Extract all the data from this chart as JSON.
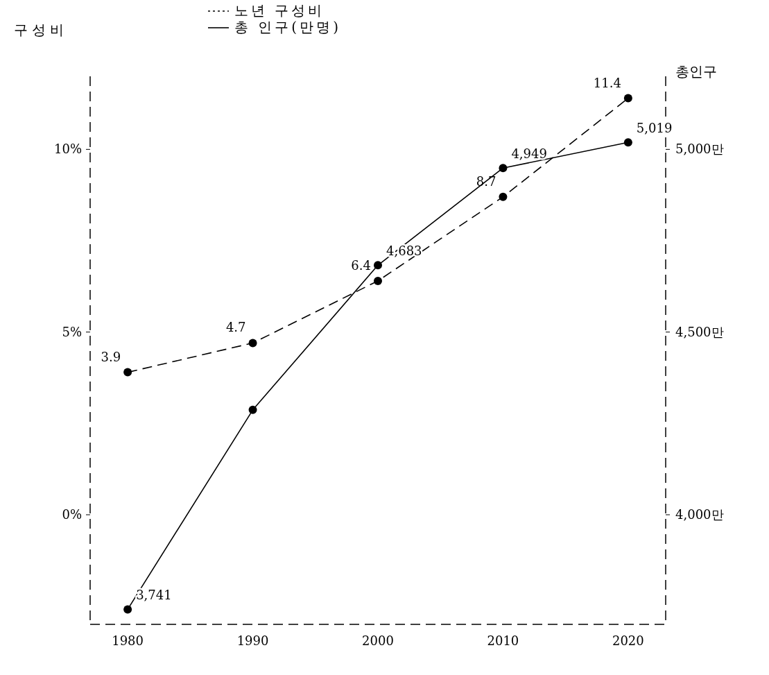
{
  "chart_data": {
    "type": "line",
    "x": [
      1980,
      1990,
      2000,
      2010,
      2020
    ],
    "xlim": [
      1977,
      2023
    ],
    "xticks": [
      1980,
      1990,
      2000,
      2010,
      2020
    ],
    "ylabel": "구성비",
    "y2label": "총인구",
    "ylim": [
      -3,
      12
    ],
    "yticks": [
      {
        "value": 0,
        "label": "0%"
      },
      {
        "value": 5,
        "label": "5%"
      },
      {
        "value": 10,
        "label": "10%"
      }
    ],
    "y2lim": [
      3700,
      5200
    ],
    "y2ticks": [
      {
        "value": 4000,
        "label": "4,000만"
      },
      {
        "value": 4500,
        "label": "4,500만"
      },
      {
        "value": 5000,
        "label": "5,000만"
      }
    ],
    "legend": "top left",
    "marker": "circle",
    "grid": false,
    "series": [
      {
        "name": "노년 구성비",
        "color": "#000000",
        "line_style": "dashed",
        "values": [
          3.9,
          4.7,
          6.4,
          8.7,
          11.4
        ],
        "value_labels": [
          "3.9",
          "4.7",
          "6.4",
          "8.7",
          "11.4"
        ]
      },
      {
        "name": "총 인구(만명)",
        "color": "#000000",
        "line_style": "solid",
        "axis": "y2",
        "values": [
          3741,
          4287,
          4683,
          4949,
          5019
        ],
        "value_labels": [
          "3,741",
          null,
          "4,683",
          "4,949",
          "5,019"
        ]
      }
    ]
  }
}
